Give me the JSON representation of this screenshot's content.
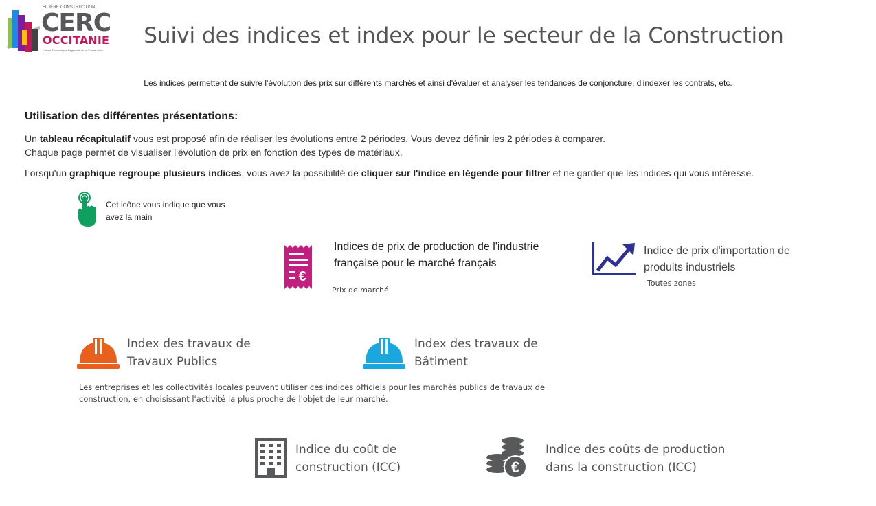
{
  "logo": {
    "top_line": "FILIÈRE CONSTRUCTION",
    "name": "CERC",
    "region": "OCCITANIE",
    "tagline": "Cellule Économique Régionale de la Construction"
  },
  "header": {
    "title": "Suivi des indices et index pour le secteur de la Construction"
  },
  "intro": "Les indices permettent de suivre l'évolution des prix sur différents marchés et ainsi d'évaluer et analyser les tendances de conjoncture, d'indexer les contrats, etc.",
  "usage": {
    "heading": "Utilisation des différentes présentations:",
    "p1_a": "Un ",
    "p1_bold": "tableau récapitulatif",
    "p1_b": " vous est proposé afin de réaliser les évolutions entre 2 périodes. Vous devez définir les 2 périodes à comparer.",
    "p1_line2": "Chaque page permet de visualiser l'évolution de prix en fonction des types de matériaux.",
    "p2_a": "Lorsqu'un ",
    "p2_bold1": "graphique regroupe plusieurs indices",
    "p2_b": ", vous avez la possibilité de ",
    "p2_bold2": "cliquer sur l'indice en légende pour filtrer",
    "p2_c": " et ne garder que les indices qui vous intéresse.",
    "hand_note": "Cet icône vous indique que vous avez la main"
  },
  "cards": {
    "ippi": {
      "title": "Indices de prix de production de l'industrie française pour le marché français",
      "sub": "Prix de marché"
    },
    "import": {
      "title": "Indice de prix d'importation de produits industriels",
      "sub": "Toutes zones"
    },
    "tp": {
      "title_l1": "Index des travaux de",
      "title_l2": "Travaux Publics"
    },
    "bat": {
      "title_l1": "Index des travaux de",
      "title_l2": "Bâtiment"
    },
    "index_desc": "Les entreprises et les collectivités locales peuvent utiliser ces indices officiels pour les marchés publics de travaux de construction, en choisissant l'activité la plus proche de l'objet de leur marché.",
    "icc": {
      "title_l1": "Indice du coût de",
      "title_l2": "construction (ICC)"
    },
    "ccp": {
      "title_l1": "Indice des coûts de production",
      "title_l2": "dans la construction (ICC)"
    }
  },
  "colors": {
    "title_grey": "#555555",
    "magenta": "#c2207f",
    "navy": "#2e3192",
    "hand_green": "#0fa060",
    "helmet_orange": "#e8601c",
    "helmet_blue": "#1aa7e0",
    "icon_grey": "#58595b"
  }
}
